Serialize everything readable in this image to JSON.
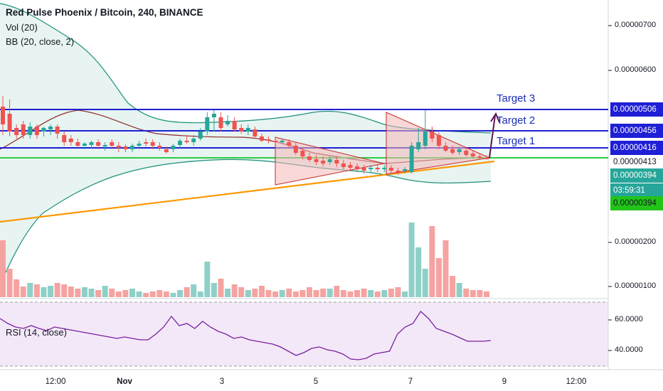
{
  "legend": {
    "title": "Red Pulse Phoenix / Bitcoin, 240, BINANCE",
    "vol": "Vol (20)",
    "bb": "BB (20, close, 2)",
    "rsi": "RSI (14, close)"
  },
  "targets": {
    "t1": "Target 1",
    "t2": "Target 2",
    "t3": "Target 3"
  },
  "price_axis": {
    "ticks": [
      "0.00000700",
      "0.00000600",
      "0.00000200",
      "0.00000100"
    ],
    "labels": {
      "t3": "0.00000506",
      "t2": "0.00000456",
      "t1": "0.00000416",
      "green": "0.00000413",
      "last": "0.00000394",
      "countdown": "03:59:31",
      "bid": "0.00000394"
    }
  },
  "rsi_axis": {
    "ticks": [
      "60.0000",
      "40.0000"
    ]
  },
  "time_axis": {
    "ticks": [
      "12:00",
      "Nov",
      "3",
      "5",
      "7",
      "9",
      "12:00"
    ]
  },
  "colors": {
    "up": "#26a69a",
    "down": "#ef5350",
    "target_line": "#1f1fd6",
    "green_line": "#2ecc40",
    "trend_line": "#ff9800",
    "bb_line": "#1b8f7a",
    "bb_fill": "#e3f4f1",
    "rsi_line": "#7b1fa2",
    "rsi_bg": "#f3e5f5",
    "triangle_fill": "#f6c2c2",
    "triangle_stroke": "#c62828",
    "arrow": "#5d1457"
  }
}
